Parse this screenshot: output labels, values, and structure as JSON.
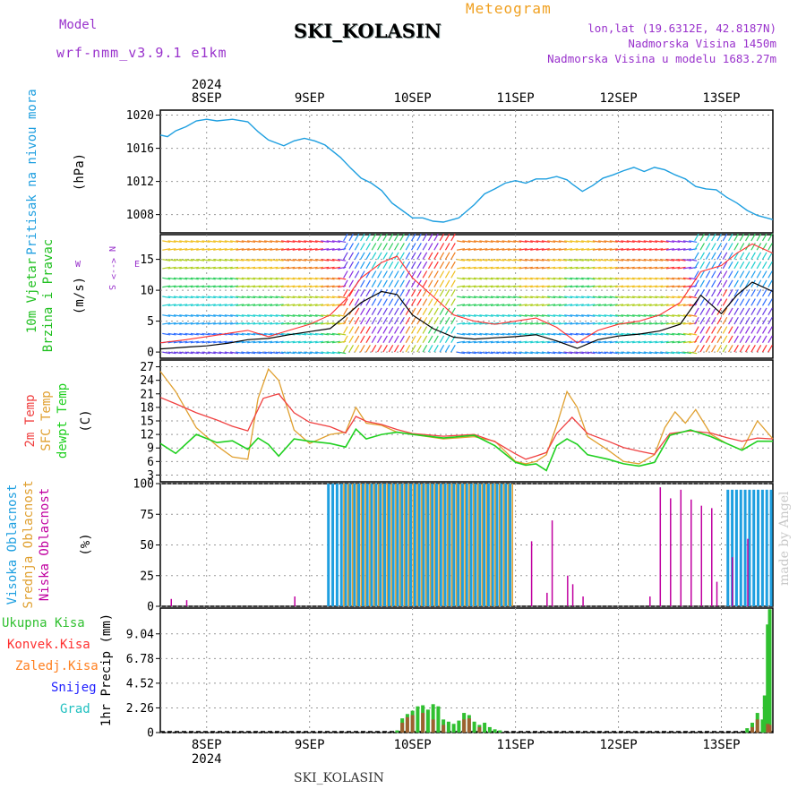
{
  "header": {
    "model_label": "Model",
    "model_version": "wrf-nmm_v3.9.1 e1km",
    "station": "SKI_KOLASIN",
    "chart_kind": "Meteogram",
    "lonlat": "lon,lat (19.6312E, 42.8187N)",
    "elevation": "Nadmorska Visina 1450m",
    "model_elevation": "Nadmorska Visina u modelu 1683.27m",
    "credit": "made by Angel",
    "footer_station": "SKI_KOLASIN"
  },
  "colors": {
    "pressure": "#1e9fe0",
    "wind_speed": "#000000",
    "wind_gust": "#ff3030",
    "t2m": "#f04040",
    "tsfc": "#e0a030",
    "dewpoint": "#20d020",
    "cloud_high": "#1e9fe0",
    "cloud_mid": "#e0a030",
    "cloud_low": "#c000a0",
    "precip_total": "#30c030",
    "precip_conv": "#ff3030",
    "precip_frz": "#ff8020",
    "precip_snow": "#2020ff",
    "precip_grad": "#20c0c0"
  },
  "chart_data": [
    {
      "type": "line",
      "panel": "pressure",
      "ylabel": [
        "Pritisak na nivou mora",
        "(hPa)"
      ],
      "x_ticks": [
        "8SEP",
        "9SEP",
        "10SEP",
        "11SEP",
        "12SEP",
        "13SEP"
      ],
      "x_top_year": "2024",
      "x_range_days": [
        7.55,
        13.5
      ],
      "ylim": [
        1005.8,
        1020.6
      ],
      "yticks": [
        "1008",
        "1012",
        "1016",
        "1020"
      ],
      "series": [
        {
          "x": [
            7.55,
            7.62,
            7.7,
            7.8,
            7.9,
            8.0,
            8.1,
            8.25,
            8.4,
            8.5,
            8.6,
            8.75,
            8.85,
            8.95,
            9.05,
            9.15,
            9.3,
            9.4,
            9.5,
            9.6,
            9.7,
            9.8,
            9.9,
            10.0,
            10.1,
            10.2,
            10.3,
            10.45,
            10.6,
            10.7,
            10.8,
            10.9,
            11.0,
            11.1,
            11.2,
            11.3,
            11.4,
            11.5,
            11.55,
            11.65,
            11.75,
            11.85,
            11.95,
            12.05,
            12.15,
            12.25,
            12.35,
            12.45,
            12.55,
            12.65,
            12.75,
            12.85,
            12.95,
            13.05,
            13.15,
            13.25,
            13.35,
            13.5
          ],
          "values": [
            1017.6,
            1017.4,
            1018.1,
            1018.6,
            1019.3,
            1019.5,
            1019.3,
            1019.5,
            1019.2,
            1018.0,
            1017.0,
            1016.3,
            1016.9,
            1017.2,
            1016.9,
            1016.4,
            1014.9,
            1013.6,
            1012.4,
            1011.8,
            1010.9,
            1009.4,
            1008.5,
            1007.6,
            1007.6,
            1007.2,
            1007.1,
            1007.6,
            1009.2,
            1010.5,
            1011.1,
            1011.8,
            1012.1,
            1011.8,
            1012.3,
            1012.3,
            1012.6,
            1012.2,
            1011.7,
            1010.8,
            1011.5,
            1012.4,
            1012.8,
            1013.3,
            1013.7,
            1013.2,
            1013.7,
            1013.4,
            1012.8,
            1012.3,
            1011.4,
            1011.1,
            1011.0,
            1010.1,
            1009.4,
            1008.5,
            1007.9,
            1007.4
          ]
        }
      ]
    },
    {
      "type": "line",
      "panel": "wind",
      "ylabel": [
        "10m Vjetar",
        "Brzina i Pravac",
        "(m/s)"
      ],
      "compass": [
        "N",
        "<-->",
        "S",
        "W",
        "E"
      ],
      "ylim": [
        -1,
        19
      ],
      "yticks": [
        "0",
        "5",
        "10",
        "15"
      ],
      "series": [
        {
          "name": "speed",
          "x": [
            7.55,
            7.8,
            8.0,
            8.2,
            8.4,
            8.6,
            8.8,
            9.0,
            9.2,
            9.35,
            9.5,
            9.7,
            9.85,
            10.0,
            10.2,
            10.4,
            10.6,
            10.8,
            11.0,
            11.2,
            11.4,
            11.6,
            11.8,
            12.0,
            12.2,
            12.4,
            12.6,
            12.8,
            13.0,
            13.15,
            13.3,
            13.5
          ],
          "values": [
            0.5,
            0.8,
            1.0,
            1.4,
            2.0,
            2.2,
            2.8,
            3.3,
            3.8,
            5.8,
            8.0,
            9.8,
            9.3,
            6.0,
            3.8,
            2.4,
            2.1,
            2.3,
            2.5,
            2.8,
            1.8,
            0.6,
            2.0,
            2.6,
            2.9,
            3.4,
            4.5,
            9.2,
            6.2,
            9.2,
            11.3,
            9.8
          ]
        },
        {
          "name": "gust",
          "x": [
            7.55,
            7.8,
            8.0,
            8.2,
            8.4,
            8.6,
            8.8,
            9.0,
            9.2,
            9.35,
            9.5,
            9.7,
            9.85,
            10.0,
            10.2,
            10.4,
            10.6,
            10.8,
            11.0,
            11.2,
            11.4,
            11.6,
            11.8,
            12.0,
            12.2,
            12.4,
            12.6,
            12.8,
            13.0,
            13.15,
            13.3,
            13.5
          ],
          "values": [
            1.5,
            2.0,
            2.5,
            3.0,
            3.5,
            2.5,
            3.5,
            4.5,
            6.0,
            8.5,
            12.0,
            14.5,
            15.5,
            12.0,
            9.0,
            6.0,
            5.0,
            4.5,
            5.0,
            5.5,
            4.0,
            1.5,
            3.5,
            4.5,
            5.0,
            6.0,
            8.0,
            13.0,
            14.0,
            16.0,
            17.5,
            16.0
          ]
        }
      ]
    },
    {
      "type": "line",
      "panel": "temperature",
      "ylabel": [
        "2m Temp",
        "SFC Temp",
        "dewpt Temp",
        "(C)"
      ],
      "ylim": [
        1.5,
        28.5
      ],
      "yticks": [
        "3",
        "6",
        "9",
        "12",
        "15",
        "18",
        "21",
        "24",
        "27"
      ],
      "series": [
        {
          "name": "2m Temp",
          "x": [
            7.55,
            7.7,
            7.9,
            8.1,
            8.25,
            8.4,
            8.55,
            8.7,
            8.85,
            9.0,
            9.2,
            9.35,
            9.45,
            9.55,
            9.7,
            9.85,
            10.0,
            10.3,
            10.6,
            10.8,
            11.0,
            11.1,
            11.2,
            11.3,
            11.4,
            11.55,
            11.7,
            11.9,
            12.05,
            12.2,
            12.35,
            12.5,
            12.7,
            12.9,
            13.05,
            13.2,
            13.35,
            13.5
          ],
          "values": [
            20.2,
            18.8,
            16.8,
            15.2,
            13.8,
            12.8,
            20.0,
            21.0,
            16.8,
            14.7,
            13.7,
            12.3,
            16.0,
            14.9,
            14.2,
            13.1,
            12.2,
            11.6,
            12.0,
            10.4,
            7.7,
            6.5,
            7.2,
            8.0,
            12.2,
            15.8,
            12.2,
            10.5,
            9.1,
            8.3,
            7.6,
            12.2,
            12.8,
            12.3,
            11.3,
            10.5,
            11.2,
            11.0
          ]
        },
        {
          "name": "SFC Temp",
          "x": [
            7.55,
            7.7,
            7.9,
            8.1,
            8.25,
            8.4,
            8.5,
            8.6,
            8.7,
            8.85,
            9.0,
            9.2,
            9.35,
            9.45,
            9.55,
            9.7,
            9.85,
            10.0,
            10.3,
            10.6,
            10.8,
            11.0,
            11.1,
            11.2,
            11.3,
            11.4,
            11.5,
            11.6,
            11.7,
            11.9,
            12.05,
            12.2,
            12.35,
            12.45,
            12.55,
            12.65,
            12.75,
            12.9,
            13.05,
            13.2,
            13.35,
            13.5
          ],
          "values": [
            26.0,
            21.5,
            13.5,
            9.5,
            7.0,
            6.5,
            20.0,
            26.5,
            24.0,
            13.0,
            10.0,
            12.0,
            12.5,
            18.0,
            14.5,
            14.0,
            12.5,
            12.0,
            11.0,
            11.5,
            10.5,
            6.0,
            5.5,
            6.0,
            7.5,
            14.0,
            21.5,
            18.0,
            11.5,
            8.5,
            6.0,
            5.5,
            7.5,
            13.5,
            17.0,
            14.5,
            17.5,
            12.0,
            10.0,
            8.5,
            15.0,
            11.0
          ]
        },
        {
          "name": "dewpt Temp",
          "x": [
            7.55,
            7.7,
            7.9,
            8.1,
            8.25,
            8.4,
            8.5,
            8.6,
            8.7,
            8.85,
            9.0,
            9.2,
            9.35,
            9.45,
            9.55,
            9.7,
            9.85,
            10.0,
            10.3,
            10.6,
            10.8,
            11.0,
            11.1,
            11.2,
            11.3,
            11.4,
            11.5,
            11.6,
            11.7,
            11.9,
            12.05,
            12.2,
            12.35,
            12.5,
            12.7,
            12.9,
            13.05,
            13.2,
            13.35,
            13.5
          ],
          "values": [
            10.0,
            7.8,
            12.0,
            10.2,
            10.6,
            8.7,
            11.2,
            9.8,
            7.2,
            11.0,
            10.5,
            10.0,
            9.2,
            13.2,
            11.0,
            12.0,
            12.5,
            12.0,
            11.2,
            11.8,
            9.5,
            5.8,
            5.2,
            5.5,
            4.0,
            9.5,
            11.0,
            9.8,
            7.5,
            6.5,
            5.5,
            5.0,
            5.8,
            11.8,
            13.0,
            11.5,
            10.0,
            8.5,
            10.5,
            10.5
          ]
        }
      ]
    },
    {
      "type": "bar",
      "panel": "clouds",
      "ylabel": [
        "Visoka Oblacnost",
        "Srednja Oblacnost",
        "Niska Oblacnost",
        "(%)"
      ],
      "ylim": [
        0,
        100
      ],
      "yticks": [
        "0",
        "25",
        "50",
        "75",
        "100"
      ],
      "series": [
        {
          "name": "high",
          "x_range": [
            [
              9.17,
              10.97
            ],
            [
              13.05,
              13.5
            ]
          ],
          "values": [
            100,
            95
          ]
        },
        {
          "name": "mid",
          "x_range": [
            [
              9.3,
              10.97
            ]
          ],
          "values": [
            100
          ]
        },
        {
          "name": "low",
          "points": [
            [
              7.65,
              6
            ],
            [
              7.8,
              5
            ],
            [
              8.85,
              8
            ],
            [
              11.15,
              53
            ],
            [
              11.3,
              11
            ],
            [
              11.35,
              70
            ],
            [
              11.5,
              25
            ],
            [
              11.55,
              18
            ],
            [
              11.65,
              8
            ],
            [
              12.3,
              8
            ],
            [
              12.4,
              97
            ],
            [
              12.5,
              88
            ],
            [
              12.6,
              95
            ],
            [
              12.7,
              87
            ],
            [
              12.8,
              82
            ],
            [
              12.9,
              80
            ],
            [
              12.95,
              20
            ],
            [
              13.1,
              40
            ],
            [
              13.25,
              55
            ]
          ]
        }
      ]
    },
    {
      "type": "bar",
      "panel": "precip",
      "ylabel": [
        "1hr Precip (mm)"
      ],
      "legend": [
        "Ukupna Kisa",
        "Konvek.Kisa",
        "Zaledj.Kisa",
        "Snijeg",
        "Grad"
      ],
      "ylim": [
        0,
        11.4
      ],
      "yticks": [
        "0",
        "2.26",
        "4.52",
        "6.78",
        "9.04"
      ],
      "series": [
        {
          "name": "Ukupna Kisa",
          "x": [
            9.85,
            9.9,
            9.95,
            10.0,
            10.05,
            10.1,
            10.15,
            10.2,
            10.25,
            10.3,
            10.35,
            10.4,
            10.45,
            10.5,
            10.55,
            10.6,
            10.65,
            10.7,
            10.75,
            10.8,
            10.85,
            13.25,
            13.3,
            13.35,
            13.4,
            13.42,
            13.45,
            13.47
          ],
          "values": [
            0.2,
            1.3,
            1.7,
            2.0,
            2.4,
            2.5,
            2.1,
            2.6,
            2.4,
            1.2,
            1.0,
            0.8,
            1.1,
            1.8,
            1.6,
            1.0,
            0.7,
            0.9,
            0.5,
            0.3,
            0.2,
            0.4,
            0.9,
            1.8,
            1.2,
            3.4,
            9.9,
            11.3
          ]
        },
        {
          "name": "Konvek.Kisa",
          "x": [
            9.9,
            9.95,
            10.0,
            10.1,
            10.2,
            10.3,
            10.5,
            10.55,
            10.65,
            13.3,
            13.35,
            13.45,
            13.47
          ],
          "values": [
            0.9,
            1.4,
            1.6,
            1.8,
            1.2,
            0.7,
            1.2,
            1.3,
            0.5,
            0.5,
            1.2,
            0.8,
            0.7
          ]
        }
      ]
    }
  ]
}
